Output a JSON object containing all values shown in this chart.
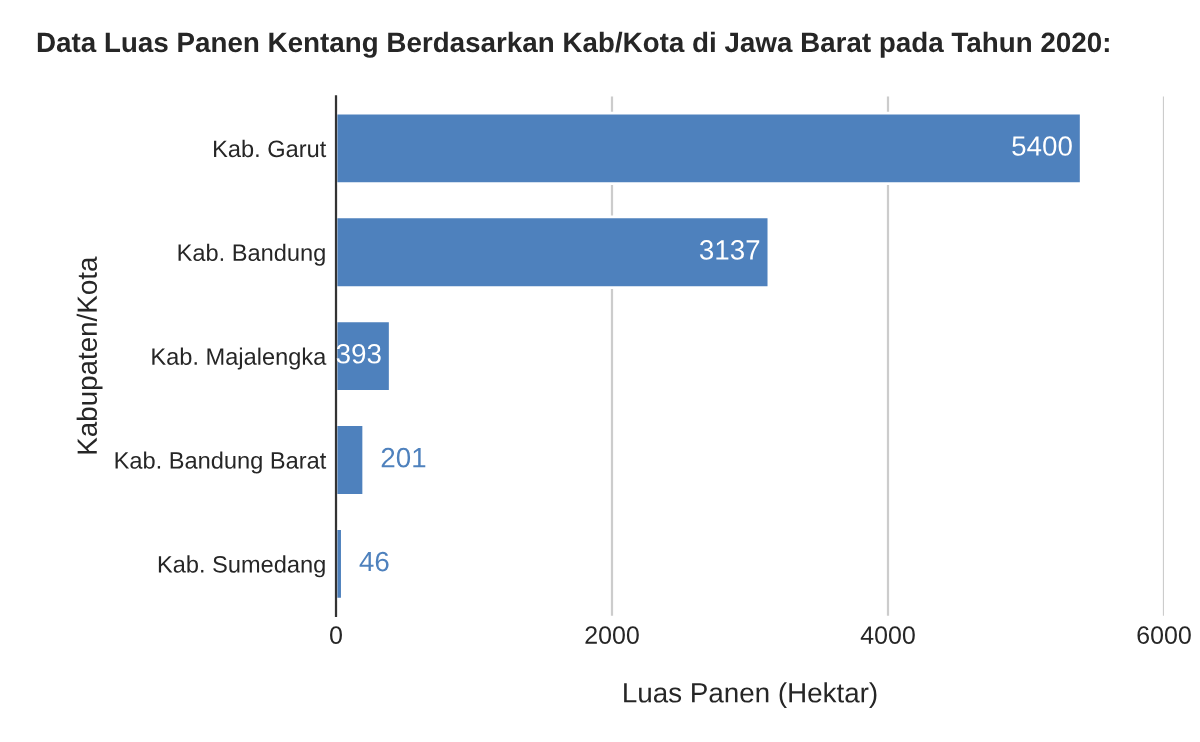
{
  "chart_data": {
    "type": "bar",
    "orientation": "horizontal",
    "title": "Data Luas Panen Kentang Berdasarkan Kab/Kota di Jawa Barat pada Tahun 2020:",
    "xlabel": "Luas Panen (Hektar)",
    "ylabel": "Kabupaten/Kota",
    "categories": [
      "Kab. Garut",
      "Kab. Bandung",
      "Kab. Majalengka",
      "Kab. Bandung Barat",
      "Kab. Sumedang"
    ],
    "values": [
      5400,
      3137,
      393,
      201,
      46
    ],
    "color": "#4e81bd",
    "xlim": [
      0,
      6000
    ],
    "xticks": [
      0,
      2000,
      4000,
      6000
    ],
    "grid": "x",
    "data_labels": true
  }
}
